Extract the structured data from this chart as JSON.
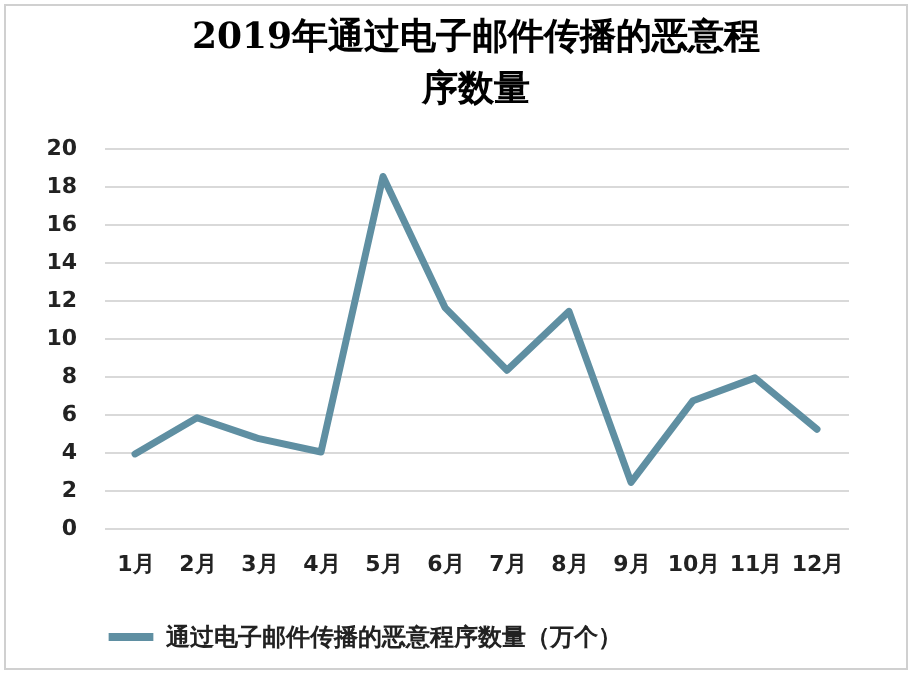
{
  "chart_data": {
    "type": "line",
    "title": "2019年通过电子邮件传播的恶意程序数量",
    "categories": [
      "1月",
      "2月",
      "3月",
      "4月",
      "5月",
      "6月",
      "7月",
      "8月",
      "9月",
      "10月",
      "11月",
      "12月"
    ],
    "series": [
      {
        "name": "通过电子邮件传播的恶意程序数量（万个）",
        "color": "#5f8fa2",
        "values": [
          3.9,
          5.8,
          4.7,
          4.0,
          18.5,
          11.6,
          8.3,
          11.4,
          2.4,
          6.7,
          7.9,
          5.2
        ]
      }
    ],
    "ylim": [
      0,
      20
    ],
    "yticks": [
      0,
      2,
      4,
      6,
      8,
      10,
      12,
      14,
      16,
      18,
      20
    ],
    "grid": "y",
    "legend": "bottom",
    "marker": "none",
    "line_style": "solid"
  }
}
